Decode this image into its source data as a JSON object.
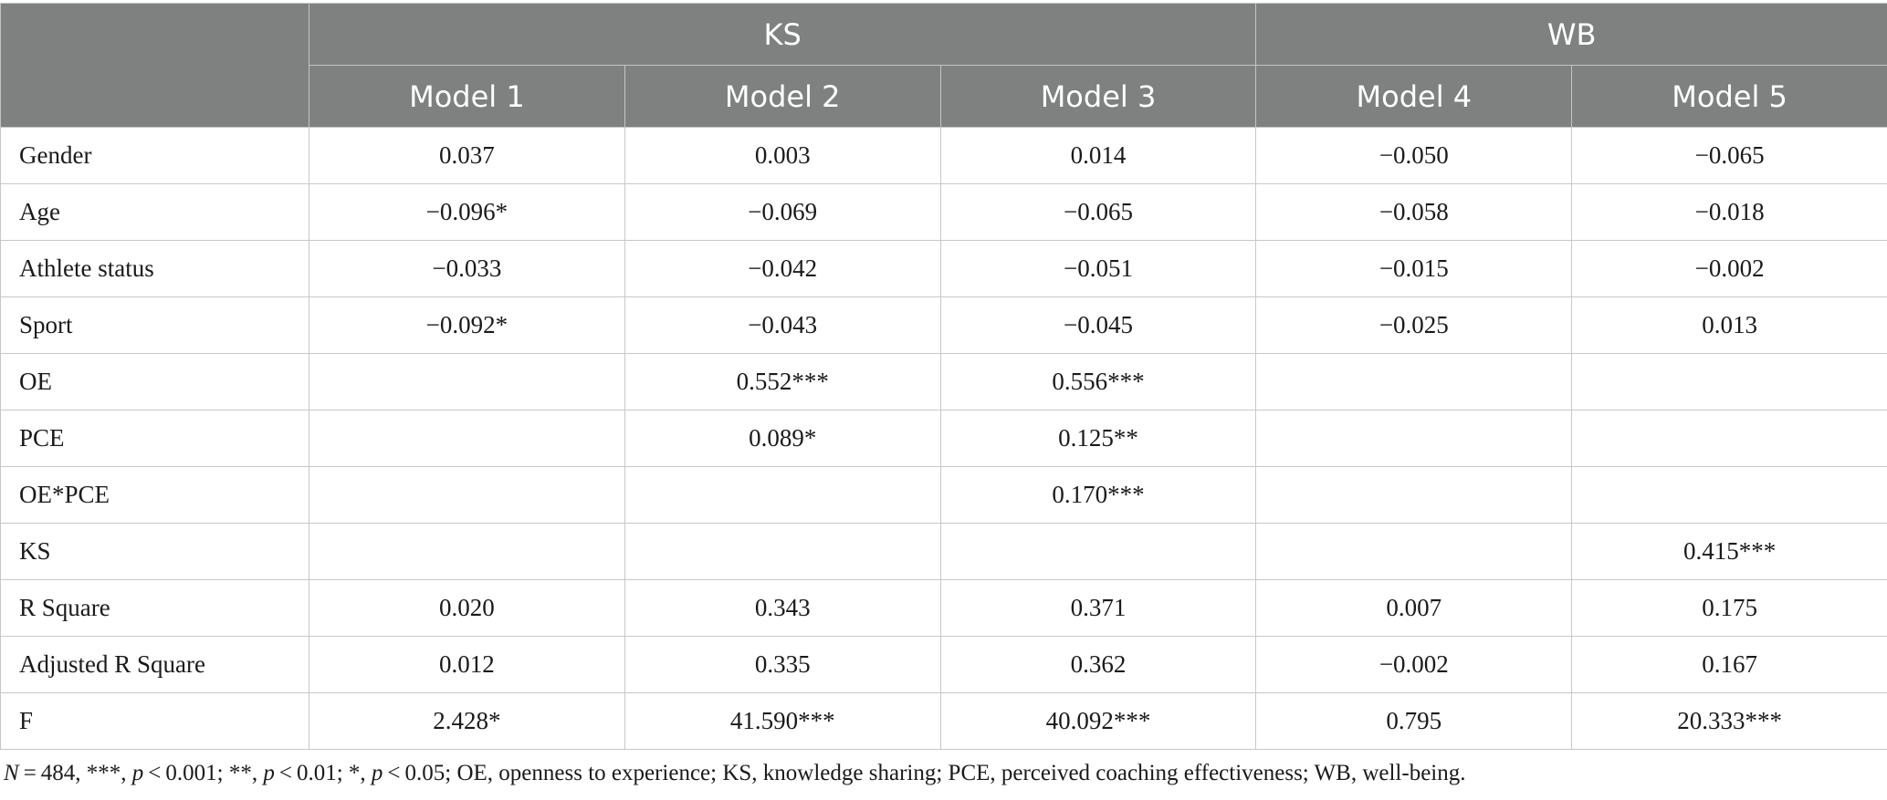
{
  "table": {
    "group_headers": [
      "KS",
      "WB"
    ],
    "model_headers": [
      "Model 1",
      "Model 2",
      "Model 3",
      "Model 4",
      "Model 5"
    ],
    "rows": [
      {
        "label": "Gender",
        "cells": [
          "0.037",
          "0.003",
          "0.014",
          "−0.050",
          "−0.065"
        ]
      },
      {
        "label": "Age",
        "cells": [
          "−0.096*",
          "−0.069",
          "−0.065",
          "−0.058",
          "−0.018"
        ]
      },
      {
        "label": "Athlete status",
        "cells": [
          "−0.033",
          "−0.042",
          "−0.051",
          "−0.015",
          "−0.002"
        ]
      },
      {
        "label": "Sport",
        "cells": [
          "−0.092*",
          "−0.043",
          "−0.045",
          "−0.025",
          "0.013"
        ]
      },
      {
        "label": "OE",
        "cells": [
          "",
          "0.552***",
          "0.556***",
          "",
          ""
        ]
      },
      {
        "label": "PCE",
        "cells": [
          "",
          "0.089*",
          "0.125**",
          "",
          ""
        ]
      },
      {
        "label": "OE*PCE",
        "cells": [
          "",
          "",
          "0.170***",
          "",
          ""
        ]
      },
      {
        "label": "KS",
        "cells": [
          "",
          "",
          "",
          "",
          "0.415***"
        ]
      },
      {
        "label": "R Square",
        "cells": [
          "0.020",
          "0.343",
          "0.371",
          "0.007",
          "0.175"
        ]
      },
      {
        "label": "Adjusted R Square",
        "cells": [
          "0.012",
          "0.335",
          "0.362",
          "−0.002",
          "0.167"
        ]
      },
      {
        "label": "F",
        "cells": [
          "2.428*",
          "41.590***",
          "40.092***",
          "0.795",
          "20.333***"
        ]
      }
    ]
  },
  "footnote": {
    "n_var": "N",
    "n_rest": " = 484, ***, ",
    "p1": "p",
    "p1_rest": " < 0.001; **, ",
    "p2": "p",
    "p2_rest": " < 0.01; *, ",
    "p3": "p",
    "p3_rest": " < 0.05; OE, openness to experience; KS, knowledge sharing; PCE, perceived coaching effectiveness; WB, well-being."
  }
}
